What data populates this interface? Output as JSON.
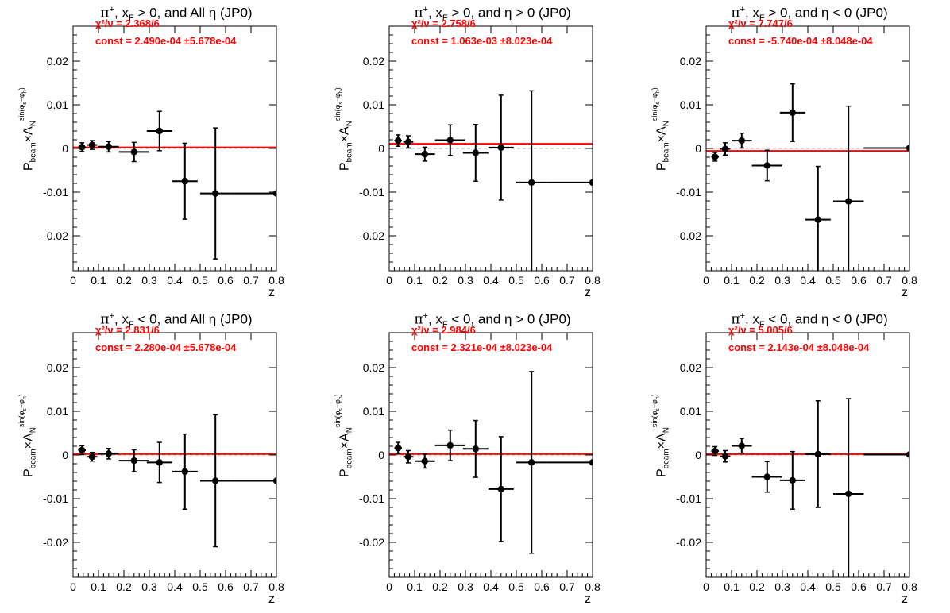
{
  "chart_data": [
    {
      "type": "scatter",
      "title_particle": "π",
      "title_charge": "+",
      "title_xf": "x",
      "title_xf_sub": "F",
      "title_rest": " > 0, and All η (JP0)",
      "chi2": "χ²/ν = 2.368/6",
      "const": "const = 2.490e-04  ±5.678e-04",
      "fit_value": 0.000249,
      "xlabel": "z",
      "ylabel": "P_beam × A_N^sin(φs−φh)",
      "xlim": [
        0,
        0.8
      ],
      "ylim": [
        -0.028,
        0.028
      ],
      "x_ticks": [
        "0",
        "0.1",
        "0.2",
        "0.3",
        "0.4",
        "0.5",
        "0.6",
        "0.7",
        "0.8"
      ],
      "y_ticks": [
        "0.02",
        "0.01",
        "0",
        "-0.01",
        "-0.02"
      ],
      "points": [
        {
          "x": 0.035,
          "y": 0.0003,
          "xerr": 0.015,
          "yerr": 0.001
        },
        {
          "x": 0.075,
          "y": 0.0008,
          "xerr": 0.02,
          "yerr": 0.001
        },
        {
          "x": 0.14,
          "y": 0.0004,
          "xerr": 0.04,
          "yerr": 0.0012
        },
        {
          "x": 0.24,
          "y": -0.0008,
          "xerr": 0.06,
          "yerr": 0.0022
        },
        {
          "x": 0.34,
          "y": 0.004,
          "xerr": 0.05,
          "yerr": 0.0045
        },
        {
          "x": 0.44,
          "y": -0.0075,
          "xerr": 0.05,
          "yerr": 0.0087
        },
        {
          "x": 0.56,
          "y": -0.0103,
          "xerr": 0.06,
          "yerr": 0.015
        },
        {
          "x": 0.8,
          "y": -0.0103,
          "xerr": 0.18,
          "yerr": 0
        }
      ]
    },
    {
      "type": "scatter",
      "title_particle": "π",
      "title_charge": "+",
      "title_xf": "x",
      "title_xf_sub": "F",
      "title_rest": " > 0, and η > 0 (JP0)",
      "chi2": "χ²/ν = 2.758/6",
      "const": "const = 1.063e-03  ±8.023e-04",
      "fit_value": 0.001063,
      "xlabel": "z",
      "ylabel": "P_beam × A_N^sin(φs−φh)",
      "xlim": [
        0,
        0.8
      ],
      "ylim": [
        -0.028,
        0.028
      ],
      "x_ticks": [
        "0",
        "0.1",
        "0.2",
        "0.3",
        "0.4",
        "0.5",
        "0.6",
        "0.7",
        "0.8"
      ],
      "y_ticks": [
        "0.02",
        "0.01",
        "0",
        "-0.01",
        "-0.02"
      ],
      "points": [
        {
          "x": 0.035,
          "y": 0.0018,
          "xerr": 0.015,
          "yerr": 0.0013
        },
        {
          "x": 0.075,
          "y": 0.0015,
          "xerr": 0.02,
          "yerr": 0.0014
        },
        {
          "x": 0.14,
          "y": -0.0013,
          "xerr": 0.04,
          "yerr": 0.0016
        },
        {
          "x": 0.24,
          "y": 0.0019,
          "xerr": 0.06,
          "yerr": 0.0035
        },
        {
          "x": 0.34,
          "y": -0.001,
          "xerr": 0.05,
          "yerr": 0.0065
        },
        {
          "x": 0.44,
          "y": 0.0002,
          "xerr": 0.05,
          "yerr": 0.012
        },
        {
          "x": 0.56,
          "y": -0.0078,
          "xerr": 0.06,
          "yerr": 0.021
        },
        {
          "x": 0.8,
          "y": -0.0078,
          "xerr": 0.18,
          "yerr": 0
        }
      ]
    },
    {
      "type": "scatter",
      "title_particle": "π",
      "title_charge": "+",
      "title_xf": "x",
      "title_xf_sub": "F",
      "title_rest": " > 0, and η < 0 (JP0)",
      "chi2": "χ²/ν = 7.747/6",
      "const": "const = -5.740e-04  ±8.048e-04",
      "fit_value": -0.000574,
      "xlabel": "z",
      "ylabel": "P_beam × A_N^sin(φs−φh)",
      "xlim": [
        0,
        0.8
      ],
      "ylim": [
        -0.028,
        0.028
      ],
      "x_ticks": [
        "0",
        "0.1",
        "0.2",
        "0.3",
        "0.4",
        "0.5",
        "0.6",
        "0.7",
        "0.8"
      ],
      "y_ticks": [
        "0.02",
        "0.01",
        "0",
        "-0.01",
        "-0.02"
      ],
      "points": [
        {
          "x": 0.035,
          "y": -0.0019,
          "xerr": 0.015,
          "yerr": 0.001
        },
        {
          "x": 0.075,
          "y": -0.0001,
          "xerr": 0.02,
          "yerr": 0.0014
        },
        {
          "x": 0.14,
          "y": 0.0018,
          "xerr": 0.04,
          "yerr": 0.0017
        },
        {
          "x": 0.24,
          "y": -0.0039,
          "xerr": 0.06,
          "yerr": 0.0035
        },
        {
          "x": 0.34,
          "y": 0.0082,
          "xerr": 0.05,
          "yerr": 0.0066
        },
        {
          "x": 0.44,
          "y": -0.0163,
          "xerr": 0.05,
          "yerr": 0.0122
        },
        {
          "x": 0.56,
          "y": -0.0121,
          "xerr": 0.06,
          "yerr": 0.0218
        },
        {
          "x": 0.8,
          "y": 0.0001,
          "xerr": 0.18,
          "yerr": 0.0285
        }
      ]
    },
    {
      "type": "scatter",
      "title_particle": "π",
      "title_charge": "+",
      "title_xf": "x",
      "title_xf_sub": "F",
      "title_rest": " < 0, and All η (JP0)",
      "chi2": "χ²/ν = 2.831/6",
      "const": "const = 2.280e-04  ±5.678e-04",
      "fit_value": 0.000228,
      "xlabel": "z",
      "ylabel": "P_beam × A_N^sin(φs−φh)",
      "xlim": [
        0,
        0.8
      ],
      "ylim": [
        -0.028,
        0.028
      ],
      "x_ticks": [
        "0",
        "0.1",
        "0.2",
        "0.3",
        "0.4",
        "0.5",
        "0.6",
        "0.7",
        "0.8"
      ],
      "y_ticks": [
        "0.02",
        "0.01",
        "0",
        "-0.01",
        "-0.02"
      ],
      "points": [
        {
          "x": 0.035,
          "y": 0.0011,
          "xerr": 0.015,
          "yerr": 0.001
        },
        {
          "x": 0.075,
          "y": -0.0004,
          "xerr": 0.02,
          "yerr": 0.001
        },
        {
          "x": 0.14,
          "y": 0.0003,
          "xerr": 0.04,
          "yerr": 0.0012
        },
        {
          "x": 0.24,
          "y": -0.0013,
          "xerr": 0.06,
          "yerr": 0.0025
        },
        {
          "x": 0.34,
          "y": -0.0017,
          "xerr": 0.05,
          "yerr": 0.0046
        },
        {
          "x": 0.44,
          "y": -0.0038,
          "xerr": 0.05,
          "yerr": 0.0086
        },
        {
          "x": 0.56,
          "y": -0.0059,
          "xerr": 0.06,
          "yerr": 0.0151
        },
        {
          "x": 0.8,
          "y": -0.0059,
          "xerr": 0.18,
          "yerr": 0
        }
      ]
    },
    {
      "type": "scatter",
      "title_particle": "π",
      "title_charge": "+",
      "title_xf": "x",
      "title_xf_sub": "F",
      "title_rest": " < 0, and η > 0 (JP0)",
      "chi2": "χ²/ν = 2.984/6",
      "const": "const = 2.321e-04  ±8.023e-04",
      "fit_value": 0.000232,
      "xlabel": "z",
      "ylabel": "P_beam × A_N^sin(φs−φh)",
      "xlim": [
        0,
        0.8
      ],
      "ylim": [
        -0.028,
        0.028
      ],
      "x_ticks": [
        "0",
        "0.1",
        "0.2",
        "0.3",
        "0.4",
        "0.5",
        "0.6",
        "0.7",
        "0.8"
      ],
      "y_ticks": [
        "0.02",
        "0.01",
        "0",
        "-0.01",
        "-0.02"
      ],
      "points": [
        {
          "x": 0.035,
          "y": 0.0016,
          "xerr": 0.015,
          "yerr": 0.0013
        },
        {
          "x": 0.075,
          "y": -0.0004,
          "xerr": 0.02,
          "yerr": 0.0014
        },
        {
          "x": 0.14,
          "y": -0.0014,
          "xerr": 0.04,
          "yerr": 0.0016
        },
        {
          "x": 0.24,
          "y": 0.0022,
          "xerr": 0.06,
          "yerr": 0.0035
        },
        {
          "x": 0.34,
          "y": 0.0014,
          "xerr": 0.05,
          "yerr": 0.0065
        },
        {
          "x": 0.44,
          "y": -0.0078,
          "xerr": 0.05,
          "yerr": 0.012
        },
        {
          "x": 0.56,
          "y": -0.0017,
          "xerr": 0.06,
          "yerr": 0.0208
        },
        {
          "x": 0.8,
          "y": -0.0017,
          "xerr": 0.18,
          "yerr": 0
        }
      ]
    },
    {
      "type": "scatter",
      "title_particle": "π",
      "title_charge": "+",
      "title_xf": "x",
      "title_xf_sub": "F",
      "title_rest": " < 0, and η < 0 (JP0)",
      "chi2": "χ²/ν = 5.005/6",
      "const": "const = 2.143e-04  ±8.048e-04",
      "fit_value": 0.000214,
      "xlabel": "z",
      "ylabel": "P_beam × A_N^sin(φs−φh)",
      "xlim": [
        0,
        0.8
      ],
      "ylim": [
        -0.028,
        0.028
      ],
      "x_ticks": [
        "0",
        "0.1",
        "0.2",
        "0.3",
        "0.4",
        "0.5",
        "0.6",
        "0.7",
        "0.8"
      ],
      "y_ticks": [
        "0.02",
        "0.01",
        "0",
        "-0.01",
        "-0.02"
      ],
      "points": [
        {
          "x": 0.035,
          "y": 0.0009,
          "xerr": 0.015,
          "yerr": 0.001
        },
        {
          "x": 0.075,
          "y": -0.0003,
          "xerr": 0.02,
          "yerr": 0.0013
        },
        {
          "x": 0.14,
          "y": 0.0021,
          "xerr": 0.04,
          "yerr": 0.0017
        },
        {
          "x": 0.24,
          "y": -0.005,
          "xerr": 0.06,
          "yerr": 0.0035
        },
        {
          "x": 0.34,
          "y": -0.0058,
          "xerr": 0.05,
          "yerr": 0.0066
        },
        {
          "x": 0.44,
          "y": 0.0002,
          "xerr": 0.05,
          "yerr": 0.0122
        },
        {
          "x": 0.56,
          "y": -0.0089,
          "xerr": 0.06,
          "yerr": 0.0218
        },
        {
          "x": 0.8,
          "y": 0.0001,
          "xerr": 0.18,
          "yerr": 0.0285
        }
      ]
    }
  ],
  "colors": {
    "fit_line": "#ff0000",
    "stat_text": "#ff0000",
    "points": "#000000",
    "zero_line": "#b0b0b0"
  }
}
